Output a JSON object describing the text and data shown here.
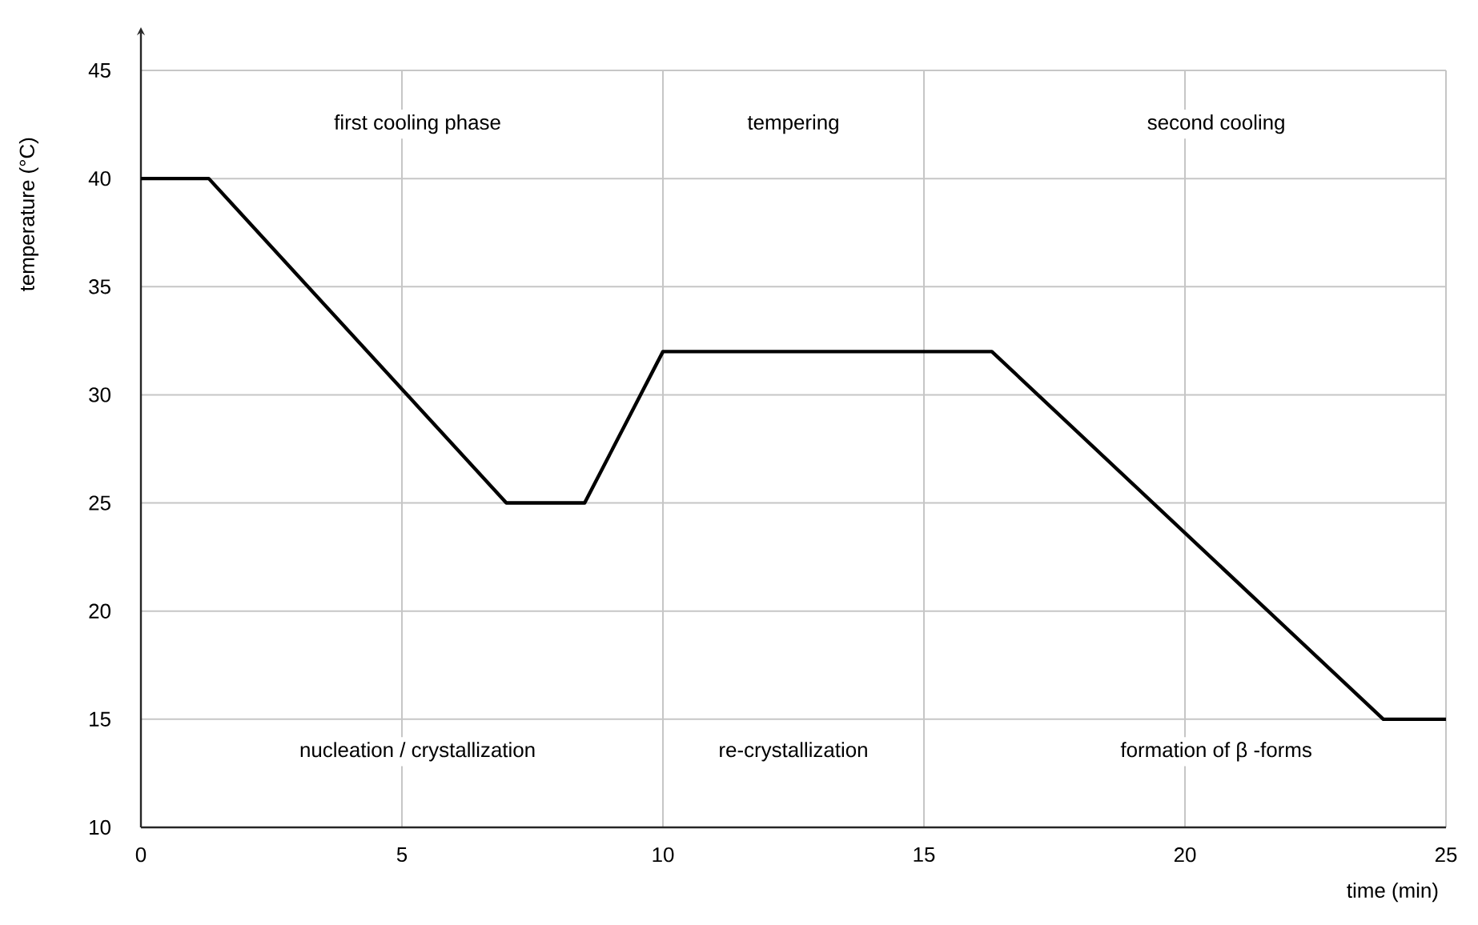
{
  "chart_data": {
    "type": "line",
    "xlabel": "time (min)",
    "ylabel": "temperature (°C)",
    "x": [
      0,
      1.3,
      7.0,
      8.5,
      10.0,
      16.3,
      23.8,
      25
    ],
    "series": [
      {
        "color": "#000000",
        "values": [
          40,
          40,
          25,
          25,
          32,
          32,
          15,
          15
        ]
      }
    ],
    "xlim": [
      0,
      25
    ],
    "ylim": [
      10,
      45
    ],
    "xticks": [
      0,
      5,
      10,
      15,
      20,
      25
    ],
    "yticks": [
      10,
      15,
      20,
      25,
      30,
      35,
      40,
      45
    ],
    "grid": true,
    "annotations": [
      "first cooling phase",
      "tempering",
      "second cooling",
      "nucleation / crystallization",
      "re-crystallization",
      "formation of β -forms"
    ]
  }
}
